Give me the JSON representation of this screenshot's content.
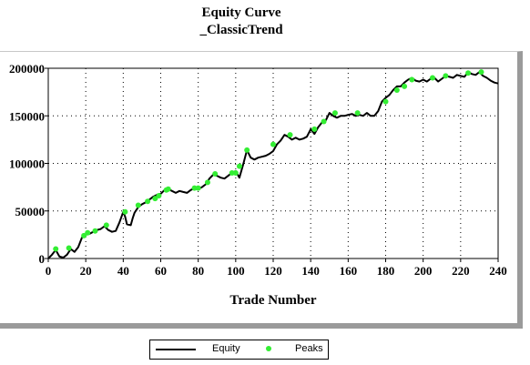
{
  "colors": {
    "equity": "#000000",
    "peaks": "#33ee33",
    "grid": "#000000",
    "frame": "#9a9a9a"
  },
  "chart_data": {
    "type": "line",
    "title": "Equity Curve",
    "subtitle": "_ClassicTrend",
    "xlabel": "Trade Number",
    "ylabel": "",
    "xlim": [
      0,
      240
    ],
    "ylim": [
      0,
      200000
    ],
    "x_ticks": [
      0,
      20,
      40,
      60,
      80,
      100,
      120,
      140,
      160,
      180,
      200,
      220,
      240
    ],
    "y_ticks": [
      0,
      50000,
      100000,
      150000,
      200000
    ],
    "grid": true,
    "legend_position": "bottom",
    "series": [
      {
        "name": "Equity",
        "style": "line",
        "x": [
          0,
          2,
          4,
          6,
          8,
          10,
          12,
          14,
          16,
          18,
          20,
          22,
          24,
          26,
          28,
          30,
          32,
          34,
          36,
          38,
          40,
          41,
          42,
          44,
          45,
          46,
          48,
          50,
          52,
          54,
          56,
          58,
          60,
          62,
          64,
          66,
          68,
          70,
          72,
          74,
          76,
          78,
          80,
          82,
          84,
          86,
          88,
          90,
          92,
          94,
          96,
          98,
          100,
          102,
          104,
          106,
          108,
          110,
          112,
          114,
          116,
          118,
          120,
          122,
          124,
          126,
          128,
          130,
          132,
          134,
          136,
          138,
          140,
          142,
          144,
          146,
          148,
          150,
          152,
          154,
          156,
          158,
          160,
          162,
          164,
          166,
          168,
          170,
          172,
          174,
          176,
          178,
          180,
          182,
          184,
          186,
          188,
          190,
          192,
          194,
          196,
          198,
          200,
          202,
          204,
          206,
          208,
          210,
          212,
          214,
          216,
          218,
          220,
          222,
          224,
          226,
          228,
          230,
          232,
          234,
          236,
          238,
          240
        ],
        "y": [
          0,
          4000,
          9000,
          2000,
          1000,
          4000,
          10000,
          7000,
          12000,
          22000,
          25000,
          26000,
          28000,
          30000,
          31000,
          34000,
          30000,
          28000,
          29000,
          38000,
          49000,
          44000,
          36000,
          35000,
          42000,
          48000,
          54000,
          57000,
          59000,
          62000,
          65000,
          67000,
          68000,
          72000,
          73000,
          71000,
          69000,
          71000,
          70000,
          69000,
          72000,
          74000,
          73000,
          75000,
          78000,
          84000,
          88000,
          87000,
          85000,
          84000,
          87000,
          90000,
          92000,
          85000,
          99000,
          114000,
          106000,
          104000,
          106000,
          107000,
          108000,
          110000,
          113000,
          120000,
          124000,
          130000,
          128000,
          125000,
          127000,
          125000,
          126000,
          128000,
          136000,
          131000,
          138000,
          143000,
          145000,
          153000,
          150000,
          148000,
          150000,
          150000,
          151000,
          152000,
          150000,
          151000,
          150000,
          153000,
          150000,
          150000,
          155000,
          165000,
          169000,
          172000,
          177000,
          181000,
          181000,
          185000,
          188000,
          190000,
          187000,
          186000,
          188000,
          186000,
          189000,
          190000,
          186000,
          189000,
          192000,
          191000,
          190000,
          193000,
          192000,
          191000,
          196000,
          194000,
          193000,
          196000,
          192000,
          190000,
          187000,
          185000,
          184000
        ]
      },
      {
        "name": "Peaks",
        "style": "scatter",
        "x": [
          4,
          11,
          19,
          21,
          25,
          31,
          41,
          48,
          53,
          57,
          59,
          63,
          64,
          78,
          80,
          85,
          89,
          98,
          100,
          102,
          106,
          120,
          129,
          142,
          147,
          153,
          165,
          180,
          186,
          190,
          194,
          205,
          212,
          224,
          231
        ],
        "y": [
          10000,
          11000,
          24000,
          27000,
          29000,
          35000,
          49000,
          56000,
          60000,
          63000,
          66000,
          72000,
          73000,
          74000,
          74000,
          80000,
          89000,
          90000,
          90000,
          97000,
          114000,
          120000,
          130000,
          136000,
          144000,
          153000,
          153000,
          165000,
          177000,
          181000,
          188000,
          190000,
          192000,
          195000,
          196000
        ]
      }
    ]
  }
}
